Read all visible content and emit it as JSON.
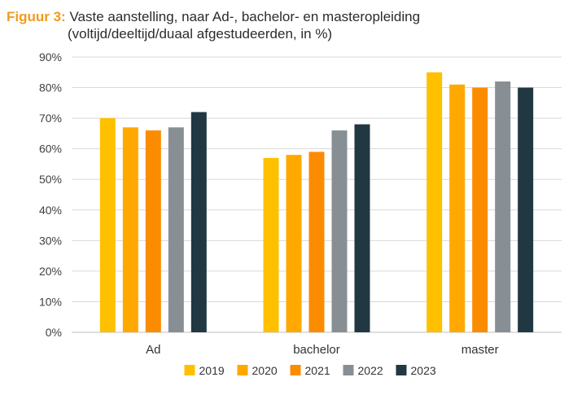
{
  "title_prefix": "Figuur 3:",
  "title_line1": "Vaste aanstelling, naar Ad-, bachelor- en masteropleiding",
  "title_line2": "(voltijd/deeltijd/duaal afgestudeerden, in %)",
  "chart_data": {
    "type": "bar",
    "title": "Vaste aanstelling, naar Ad-, bachelor- en masteropleiding (voltijd/deeltijd/duaal afgestudeerden, in %)",
    "xlabel": "",
    "ylabel": "",
    "categories": [
      "Ad",
      "bachelor",
      "master"
    ],
    "ylim": [
      0,
      90
    ],
    "yticks": [
      0,
      10,
      20,
      30,
      40,
      50,
      60,
      70,
      80,
      90
    ],
    "ytick_labels": [
      "0%",
      "10%",
      "20%",
      "30%",
      "40%",
      "50%",
      "60%",
      "70%",
      "80%",
      "90%"
    ],
    "grid": true,
    "legend_position": "bottom",
    "series": [
      {
        "name": "2019",
        "color": "#ffc000",
        "values": [
          70,
          57,
          85
        ]
      },
      {
        "name": "2020",
        "color": "#ffa800",
        "values": [
          67,
          58,
          81
        ]
      },
      {
        "name": "2021",
        "color": "#fb8c00",
        "values": [
          66,
          59,
          80
        ]
      },
      {
        "name": "2022",
        "color": "#878f94",
        "values": [
          67,
          66,
          82
        ]
      },
      {
        "name": "2023",
        "color": "#213843",
        "values": [
          72,
          68,
          80
        ]
      }
    ]
  }
}
